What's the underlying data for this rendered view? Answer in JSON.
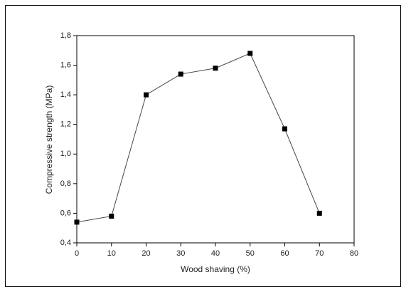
{
  "chart_data": {
    "type": "line",
    "x_label": "Wood shaving (%)",
    "y_label": "Compressive strength (MPa)",
    "x": [
      0,
      10,
      20,
      30,
      40,
      50,
      60,
      70
    ],
    "values": [
      0.54,
      0.58,
      1.4,
      1.54,
      1.58,
      1.68,
      1.17,
      0.6
    ],
    "color": "#000000",
    "xlim": [
      0,
      80
    ],
    "xticks": [
      0,
      10,
      20,
      30,
      40,
      50,
      60,
      70,
      80
    ],
    "ylim": [
      0.4,
      1.8
    ],
    "yticks": [
      {
        "value": 0.4,
        "label": "0,4"
      },
      {
        "value": 0.6,
        "label": "0,6"
      },
      {
        "value": 0.8,
        "label": "0,8"
      },
      {
        "value": 1.0,
        "label": "1,0"
      },
      {
        "value": 1.2,
        "label": "1,2"
      },
      {
        "value": 1.4,
        "label": "1,4"
      },
      {
        "value": 1.6,
        "label": "1,6"
      },
      {
        "value": 1.8,
        "label": "1,8"
      }
    ],
    "grid": false
  }
}
